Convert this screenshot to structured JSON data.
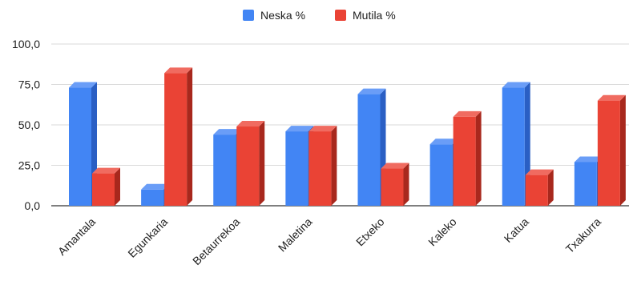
{
  "colors": {
    "series_0": "#4285f4",
    "series_0_dark": "#2a5fc4",
    "series_0_top": "#6a9df7",
    "series_1": "#ea4335",
    "series_1_dark": "#a8281d",
    "series_1_top": "#f06b60",
    "grid": "#dadada",
    "axis": "#333333",
    "text": "#222222"
  },
  "chart_data": {
    "type": "bar",
    "style": "3d-clustered",
    "title": "",
    "xlabel": "",
    "ylabel": "",
    "ylim": [
      0,
      100
    ],
    "yticks": [
      0,
      25,
      50,
      75,
      100
    ],
    "ytick_labels": [
      "0,0",
      "25,0",
      "50,0",
      "75,0",
      "100,0"
    ],
    "grid": true,
    "legend_position": "top",
    "categories": [
      "Amantala",
      "Egunkaria",
      "Betaurrekoa",
      "Maletina",
      "Etxeko",
      "Kaleko",
      "Katua",
      "Txakurra"
    ],
    "series": [
      {
        "name": "Neska %",
        "values": [
          73,
          10,
          44,
          46,
          69,
          38,
          73,
          27
        ]
      },
      {
        "name": "Mutila %",
        "values": [
          20,
          82,
          49,
          46,
          23,
          55,
          19,
          65
        ]
      }
    ]
  }
}
